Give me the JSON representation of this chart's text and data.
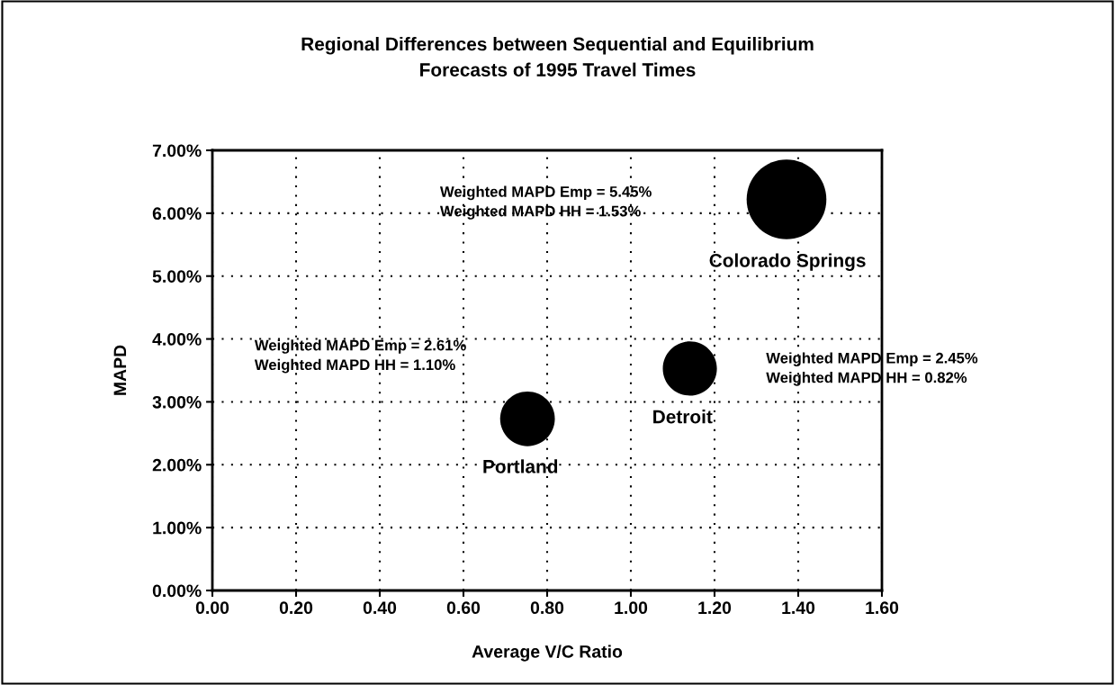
{
  "chart_data": {
    "type": "bubble",
    "title": "Regional Differences between Sequential and Equilibrium\nForecasts of 1995 Travel Times",
    "xlabel": "Average V/C Ratio",
    "ylabel": "MAPD",
    "x": [
      0.753,
      1.141,
      1.372
    ],
    "series": [
      {
        "color": "#000000",
        "values": [
          2.73,
          3.53,
          6.22
        ],
        "sizes": [
          0.47,
          0.46,
          1
        ]
      }
    ],
    "annotations": [
      "Portland",
      "Weighted MAPD Emp = 2.61%\nWeighted MAPD HH = 1.10%",
      "Detroit",
      "Weighted MAPD Emp = 2.45%\nWeighted MAPD HH = 0.82%",
      "Colorado Springs",
      "Weighted MAPD Emp = 5.45%\nWeighted MAPD HH = 1.53%"
    ],
    "xlim": [
      0,
      1.6
    ],
    "xticks": [
      {
        "value": 0,
        "label": "0.00"
      },
      {
        "value": 0.2,
        "label": "0.20"
      },
      {
        "value": 0.4,
        "label": "0.40"
      },
      {
        "value": 0.6,
        "label": "0.60"
      },
      {
        "value": 0.8,
        "label": "0.80"
      },
      {
        "value": 1,
        "label": "1.00"
      },
      {
        "value": 1.2,
        "label": "1.20"
      },
      {
        "value": 1.4,
        "label": "1.40"
      },
      {
        "value": 1.6,
        "label": "1.60"
      }
    ],
    "ylim": [
      0,
      7
    ],
    "yticks": [
      {
        "value": 0,
        "label": "0.00%"
      },
      {
        "value": 1,
        "label": "1.00%"
      },
      {
        "value": 2,
        "label": "2.00%"
      },
      {
        "value": 3,
        "label": "3.00%"
      },
      {
        "value": 4,
        "label": "4.00%"
      },
      {
        "value": 5,
        "label": "5.00%"
      },
      {
        "value": 6,
        "label": "6.00%"
      },
      {
        "value": 7,
        "label": "7.00%"
      }
    ],
    "grid": true,
    "legend": false
  }
}
